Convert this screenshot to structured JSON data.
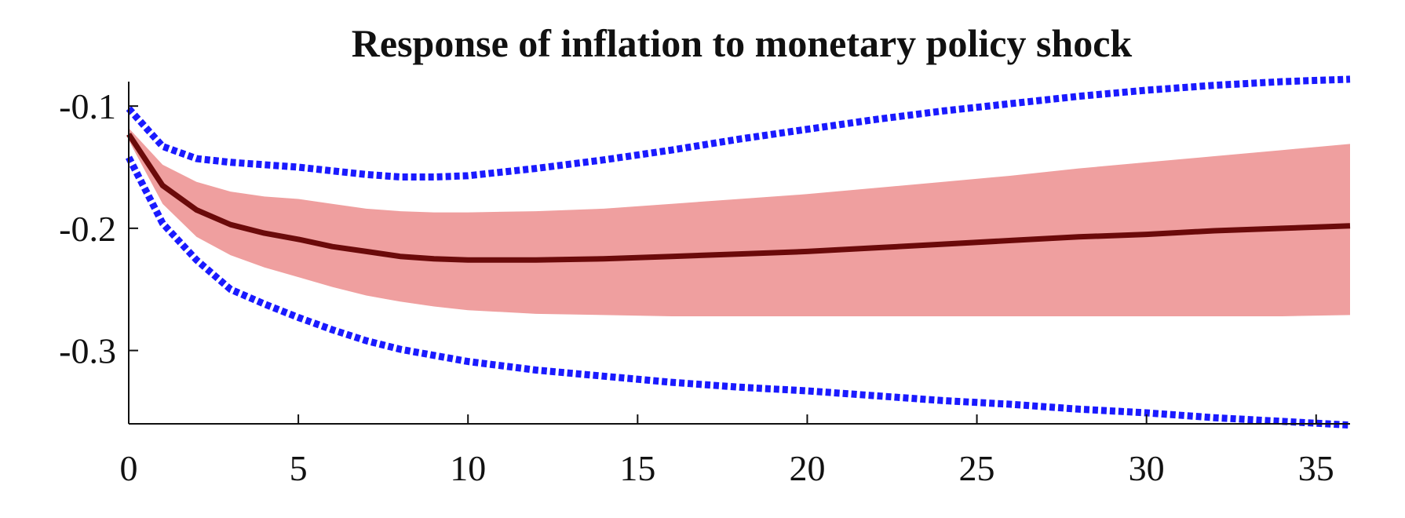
{
  "chart_data": {
    "type": "line",
    "title": "Response of inflation to monetary policy shock",
    "xlabel": "",
    "ylabel": "",
    "xlim": [
      0,
      36
    ],
    "ylim": [
      -0.36,
      -0.08
    ],
    "xticks": [
      0,
      5,
      10,
      15,
      20,
      25,
      30,
      35
    ],
    "yticks": [
      -0.1,
      -0.2,
      -0.3
    ],
    "xtick_labels": [
      "0",
      "5",
      "10",
      "15",
      "20",
      "25",
      "30",
      "35"
    ],
    "ytick_labels": [
      "-0.1",
      "-0.2",
      "-0.3"
    ],
    "grid": false,
    "colors": {
      "median": "#6b0a0a",
      "band_fill": "#ef9f9f",
      "outer_bounds": "#1a1aff"
    },
    "x": [
      0,
      1,
      2,
      3,
      4,
      5,
      6,
      7,
      8,
      9,
      10,
      12,
      14,
      16,
      18,
      20,
      22,
      24,
      26,
      28,
      30,
      32,
      34,
      36
    ],
    "median": [
      -0.123,
      -0.165,
      -0.185,
      -0.197,
      -0.204,
      -0.209,
      -0.215,
      -0.219,
      -0.223,
      -0.225,
      -0.226,
      -0.226,
      -0.225,
      -0.223,
      -0.221,
      -0.219,
      -0.216,
      -0.213,
      -0.21,
      -0.207,
      -0.205,
      -0.202,
      -0.2,
      -0.198
    ],
    "inner_band_upper": [
      -0.118,
      -0.148,
      -0.162,
      -0.17,
      -0.174,
      -0.176,
      -0.18,
      -0.184,
      -0.186,
      -0.187,
      -0.187,
      -0.186,
      -0.184,
      -0.18,
      -0.176,
      -0.172,
      -0.167,
      -0.162,
      -0.157,
      -0.151,
      -0.146,
      -0.141,
      -0.136,
      -0.131
    ],
    "inner_band_lower": [
      -0.128,
      -0.18,
      -0.207,
      -0.222,
      -0.232,
      -0.24,
      -0.248,
      -0.255,
      -0.26,
      -0.264,
      -0.267,
      -0.27,
      -0.271,
      -0.272,
      -0.272,
      -0.272,
      -0.272,
      -0.272,
      -0.272,
      -0.272,
      -0.272,
      -0.272,
      -0.272,
      -0.271
    ],
    "outer_band_upper": [
      -0.102,
      -0.133,
      -0.143,
      -0.146,
      -0.148,
      -0.15,
      -0.153,
      -0.156,
      -0.158,
      -0.158,
      -0.157,
      -0.151,
      -0.144,
      -0.136,
      -0.127,
      -0.119,
      -0.111,
      -0.104,
      -0.098,
      -0.092,
      -0.087,
      -0.083,
      -0.08,
      -0.078
    ],
    "outer_band_lower": [
      -0.142,
      -0.196,
      -0.226,
      -0.25,
      -0.262,
      -0.273,
      -0.283,
      -0.292,
      -0.299,
      -0.304,
      -0.309,
      -0.316,
      -0.321,
      -0.326,
      -0.33,
      -0.333,
      -0.337,
      -0.341,
      -0.344,
      -0.348,
      -0.351,
      -0.355,
      -0.358,
      -0.361
    ]
  }
}
